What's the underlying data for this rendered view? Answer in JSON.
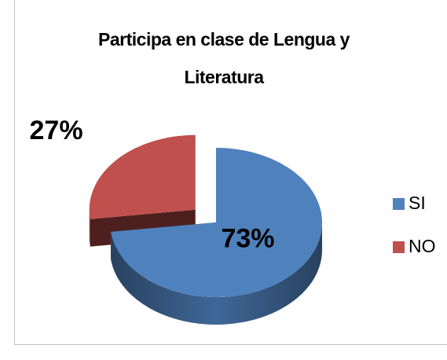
{
  "chart_data": {
    "type": "pie",
    "title": "Participa en clase de Lengua y Literatura",
    "categories": [
      "SI",
      "NO"
    ],
    "values": [
      73,
      27
    ],
    "value_labels": [
      "73%",
      "27%"
    ],
    "colors": [
      "#4f81bd",
      "#c0504d"
    ],
    "legend": "right"
  }
}
